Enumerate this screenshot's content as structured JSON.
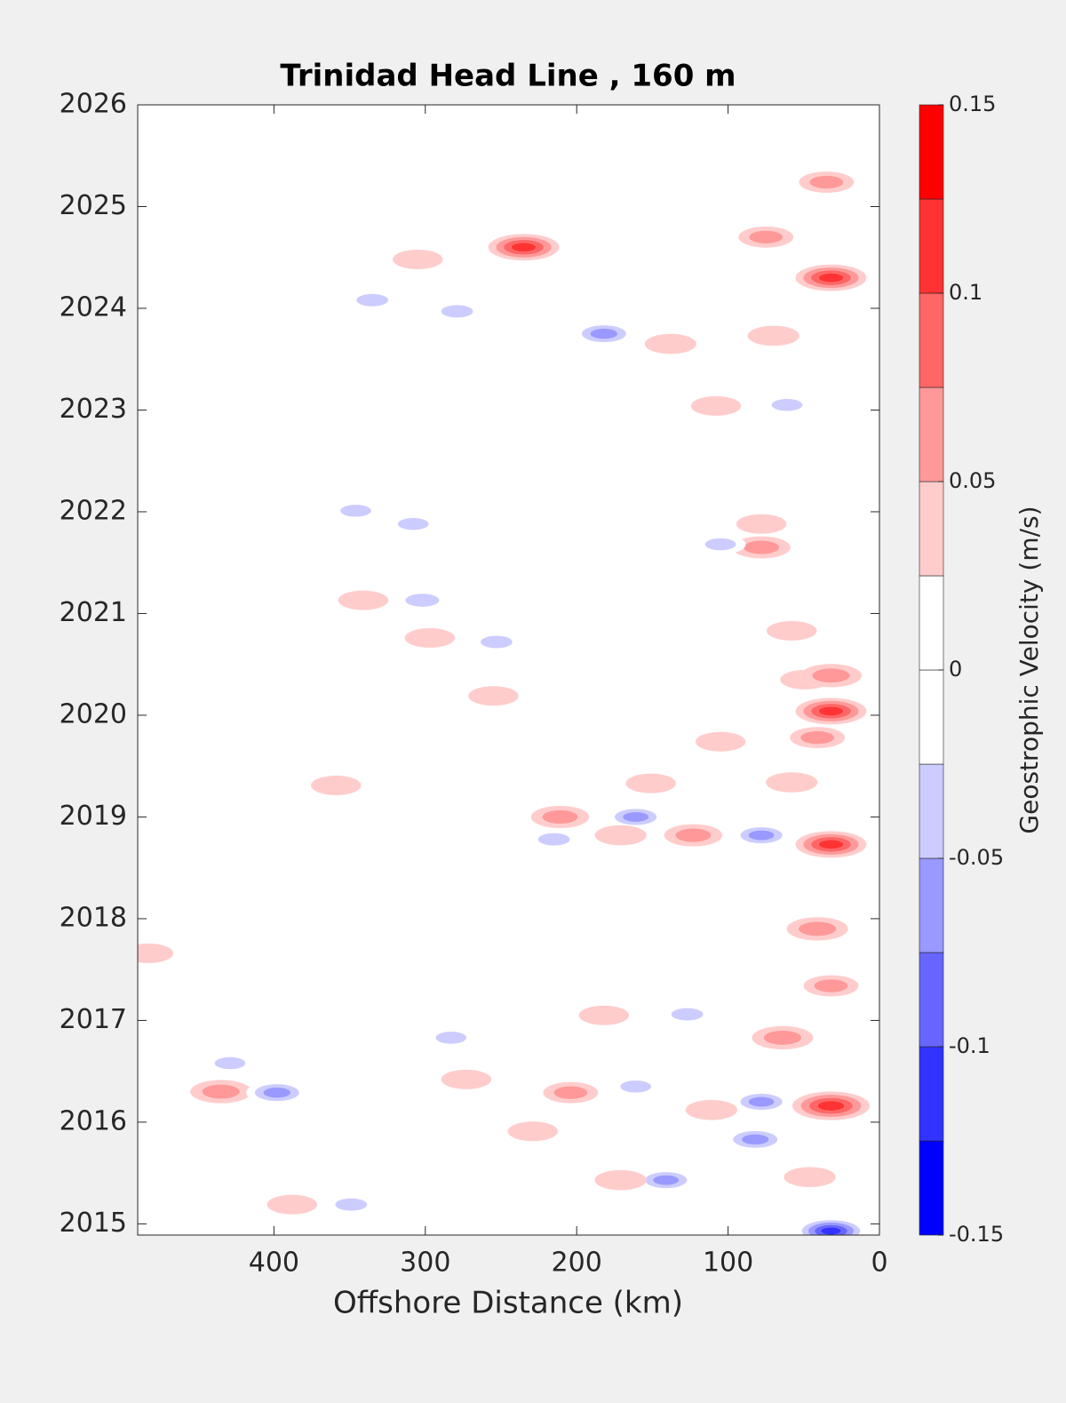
{
  "chart_data": {
    "type": "contour",
    "title": "Trinidad Head Line , 160 m",
    "x_label": "Offshore Distance (km)",
    "colorbar_label": "Geostrophic Velocity (m/s)",
    "xlim": [
      490,
      0
    ],
    "xticks": [
      400,
      300,
      200,
      100,
      0
    ],
    "ylim": [
      2014.89,
      2026
    ],
    "yticks": [
      2015,
      2016,
      2017,
      2018,
      2019,
      2020,
      2021,
      2022,
      2023,
      2024,
      2025,
      2026
    ],
    "clim": [
      -0.15,
      0.15
    ],
    "cticks": [
      -0.15,
      -0.1,
      -0.05,
      0,
      0.05,
      0.1,
      0.15
    ],
    "colors": [
      "#0000ff",
      "#3333ff",
      "#6666ff",
      "#9999ff",
      "#ccccff",
      "#ffffff",
      "#ffffff",
      "#ffcccc",
      "#ff9999",
      "#ff6666",
      "#ff3333",
      "#ff0000"
    ],
    "points": [
      {
        "x": 235,
        "y": 2024.6,
        "value": 0.1
      },
      {
        "x": 182,
        "y": 2023.75,
        "value": -0.07
      },
      {
        "x": 335,
        "y": 2024.08,
        "value": -0.04
      },
      {
        "x": 279,
        "y": 2023.97,
        "value": -0.04
      },
      {
        "x": 32,
        "y": 2024.3,
        "value": 0.1
      },
      {
        "x": 75,
        "y": 2024.7,
        "value": 0.05
      },
      {
        "x": 70,
        "y": 2023.73,
        "value": 0.04
      },
      {
        "x": 138,
        "y": 2023.65,
        "value": 0.04
      },
      {
        "x": 305,
        "y": 2024.48,
        "value": 0.035
      },
      {
        "x": 35,
        "y": 2025.24,
        "value": 0.05
      },
      {
        "x": 78,
        "y": 2021.65,
        "value": 0.06
      },
      {
        "x": 78,
        "y": 2021.88,
        "value": 0.035
      },
      {
        "x": 105,
        "y": 2021.68,
        "value": -0.035
      },
      {
        "x": 302,
        "y": 2021.13,
        "value": -0.05
      },
      {
        "x": 253,
        "y": 2020.72,
        "value": -0.04
      },
      {
        "x": 297,
        "y": 2020.76,
        "value": 0.035
      },
      {
        "x": 58,
        "y": 2020.83,
        "value": 0.035
      },
      {
        "x": 32,
        "y": 2020.04,
        "value": 0.1
      },
      {
        "x": 49,
        "y": 2020.35,
        "value": 0.035
      },
      {
        "x": 32,
        "y": 2020.39,
        "value": 0.07
      },
      {
        "x": 211,
        "y": 2019.0,
        "value": 0.06
      },
      {
        "x": 161,
        "y": 2019.0,
        "value": -0.06
      },
      {
        "x": 123,
        "y": 2018.82,
        "value": 0.06
      },
      {
        "x": 78,
        "y": 2018.82,
        "value": -0.06
      },
      {
        "x": 32,
        "y": 2018.73,
        "value": 0.1
      },
      {
        "x": 171,
        "y": 2018.82,
        "value": 0.04
      },
      {
        "x": 215,
        "y": 2018.78,
        "value": -0.04
      },
      {
        "x": 41,
        "y": 2017.9,
        "value": 0.07
      },
      {
        "x": 64,
        "y": 2016.83,
        "value": 0.07
      },
      {
        "x": 182,
        "y": 2017.05,
        "value": 0.035
      },
      {
        "x": 127,
        "y": 2017.06,
        "value": -0.04
      },
      {
        "x": 435,
        "y": 2016.3,
        "value": 0.07
      },
      {
        "x": 398,
        "y": 2016.29,
        "value": -0.07
      },
      {
        "x": 273,
        "y": 2016.42,
        "value": 0.035
      },
      {
        "x": 204,
        "y": 2016.29,
        "value": 0.05
      },
      {
        "x": 161,
        "y": 2016.35,
        "value": -0.035
      },
      {
        "x": 78,
        "y": 2016.2,
        "value": -0.06
      },
      {
        "x": 32,
        "y": 2016.16,
        "value": 0.12
      },
      {
        "x": 82,
        "y": 2015.83,
        "value": -0.07
      },
      {
        "x": 111,
        "y": 2016.12,
        "value": 0.04
      },
      {
        "x": 141,
        "y": 2015.43,
        "value": -0.06
      },
      {
        "x": 171,
        "y": 2015.43,
        "value": 0.04
      },
      {
        "x": 229,
        "y": 2015.91,
        "value": 0.035
      },
      {
        "x": 388,
        "y": 2015.19,
        "value": 0.035
      },
      {
        "x": 349,
        "y": 2015.19,
        "value": -0.04
      },
      {
        "x": 32,
        "y": 2014.93,
        "value": -0.1
      },
      {
        "x": 483,
        "y": 2017.66,
        "value": 0.035
      },
      {
        "x": 283,
        "y": 2016.83,
        "value": -0.035
      },
      {
        "x": 429,
        "y": 2016.58,
        "value": -0.035
      },
      {
        "x": 32,
        "y": 2017.34,
        "value": 0.05
      },
      {
        "x": 58,
        "y": 2019.34,
        "value": 0.04
      },
      {
        "x": 151,
        "y": 2019.33,
        "value": 0.035
      },
      {
        "x": 105,
        "y": 2019.74,
        "value": 0.035
      },
      {
        "x": 41,
        "y": 2019.78,
        "value": 0.05
      },
      {
        "x": 255,
        "y": 2020.19,
        "value": 0.035
      },
      {
        "x": 46,
        "y": 2015.46,
        "value": 0.04
      },
      {
        "x": 108,
        "y": 2023.04,
        "value": 0.035
      },
      {
        "x": 61,
        "y": 2023.05,
        "value": -0.035
      },
      {
        "x": 346,
        "y": 2022.01,
        "value": -0.035
      },
      {
        "x": 308,
        "y": 2021.88,
        "value": -0.035
      },
      {
        "x": 341,
        "y": 2021.13,
        "value": 0.035
      },
      {
        "x": 359,
        "y": 2019.31,
        "value": 0.035
      }
    ]
  }
}
